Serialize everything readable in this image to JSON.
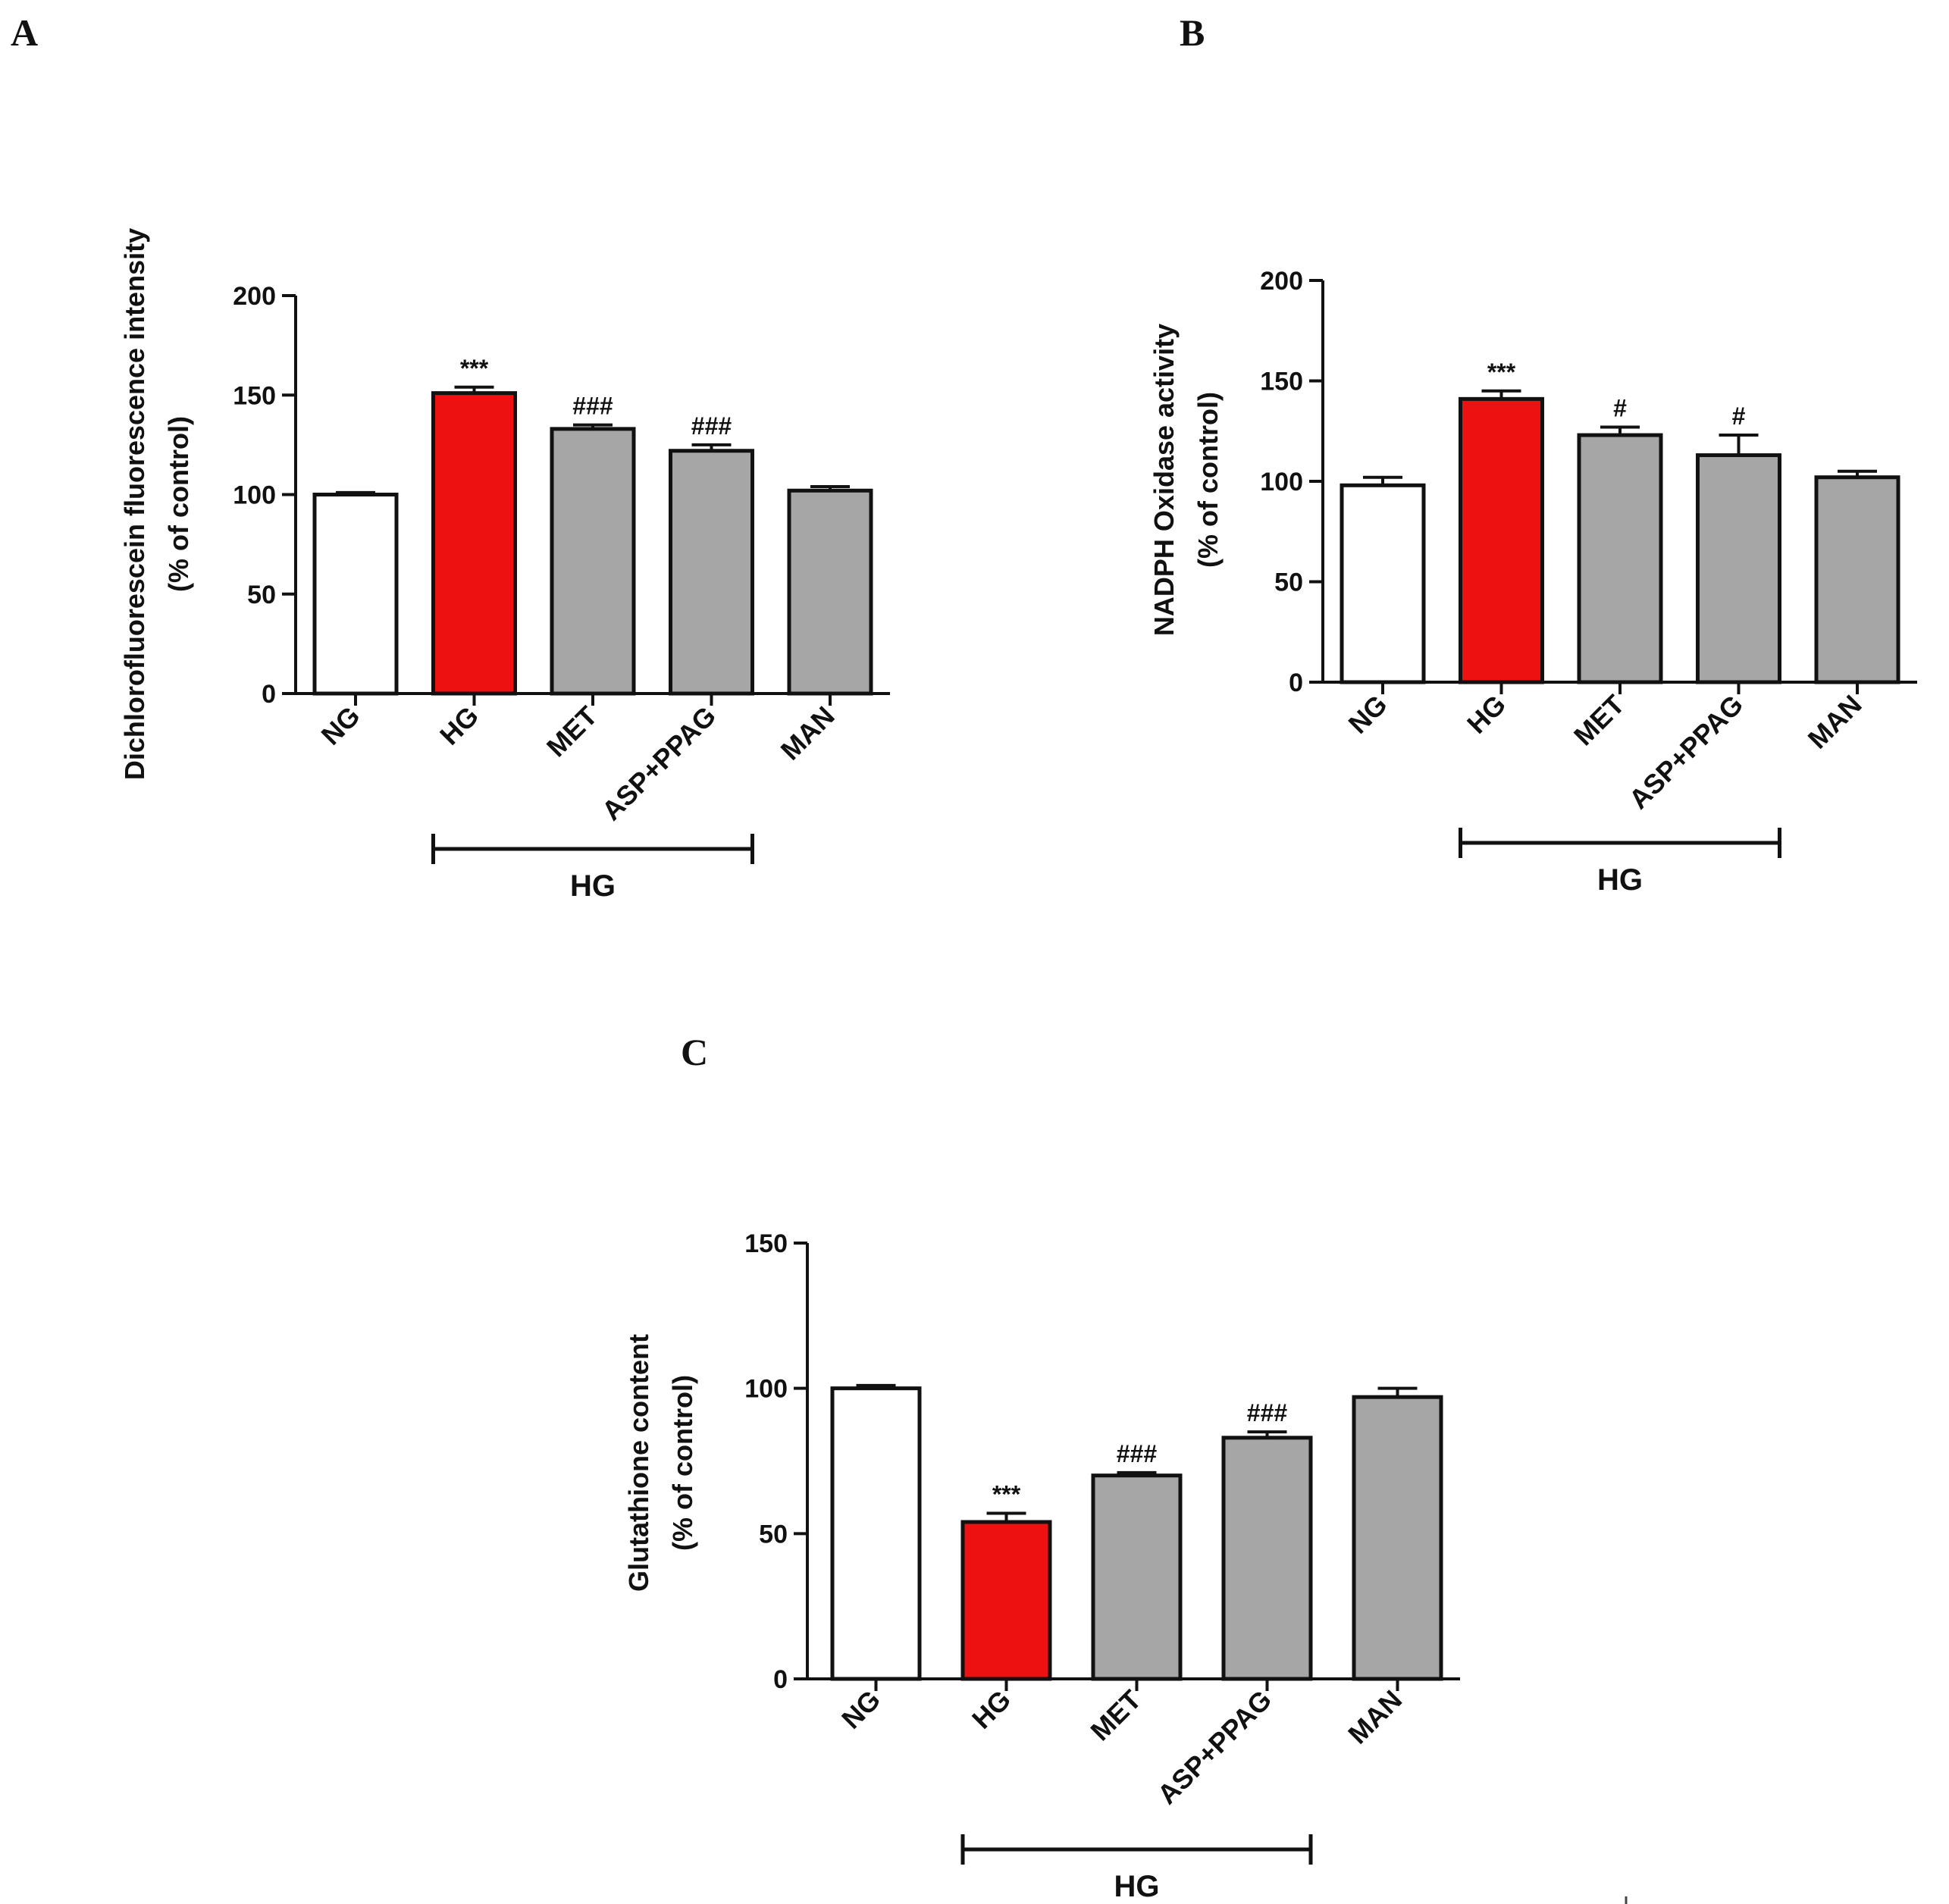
{
  "colors": {
    "NG": "#ffffff",
    "HG": "#ee1111",
    "other": "#a6a6a6",
    "stroke": "#111111"
  },
  "chart_data": [
    {
      "panel": "A",
      "type": "bar",
      "categories": [
        "NG",
        "HG",
        "MET",
        "ASP+PPAG",
        "MAN"
      ],
      "values": [
        100,
        151,
        133,
        122,
        102
      ],
      "errors": [
        1,
        3,
        2,
        3,
        2
      ],
      "significance": [
        "",
        "***",
        "###",
        "###",
        ""
      ],
      "ylabel_line1": "Dichlorofluorescein fluorescence intensity",
      "ylabel_line2": "(% of control)",
      "ylim": [
        0,
        200
      ],
      "yticks": [
        0,
        50,
        100,
        150,
        200
      ],
      "bracket": {
        "label": "HG",
        "from": "HG",
        "to": "ASP+PPAG"
      }
    },
    {
      "panel": "B",
      "type": "bar",
      "categories": [
        "NG",
        "HG",
        "MET",
        "ASP+PPAG",
        "MAN"
      ],
      "values": [
        98,
        141,
        123,
        113,
        102
      ],
      "errors": [
        4,
        4,
        4,
        10,
        3
      ],
      "significance": [
        "",
        "***",
        "#",
        "#",
        ""
      ],
      "ylabel_line1": "NADPH Oxidase activity",
      "ylabel_line2": "(% of control)",
      "ylim": [
        0,
        200
      ],
      "yticks": [
        0,
        50,
        100,
        150,
        200
      ],
      "bracket": {
        "label": "HG",
        "from": "HG",
        "to": "ASP+PPAG"
      }
    },
    {
      "panel": "C",
      "type": "bar",
      "categories": [
        "NG",
        "HG",
        "MET",
        "ASP+PPAG",
        "MAN"
      ],
      "values": [
        100,
        54,
        70,
        83,
        97
      ],
      "errors": [
        1,
        3,
        1,
        2,
        3
      ],
      "significance": [
        "",
        "***",
        "###",
        "###",
        ""
      ],
      "ylabel_line1": "Glutathione content",
      "ylabel_line2": "(% of control)",
      "ylim": [
        0,
        150
      ],
      "yticks": [
        0,
        50,
        100,
        150
      ],
      "bracket": {
        "label": "HG",
        "from": "HG",
        "to": "ASP+PPAG"
      }
    }
  ]
}
